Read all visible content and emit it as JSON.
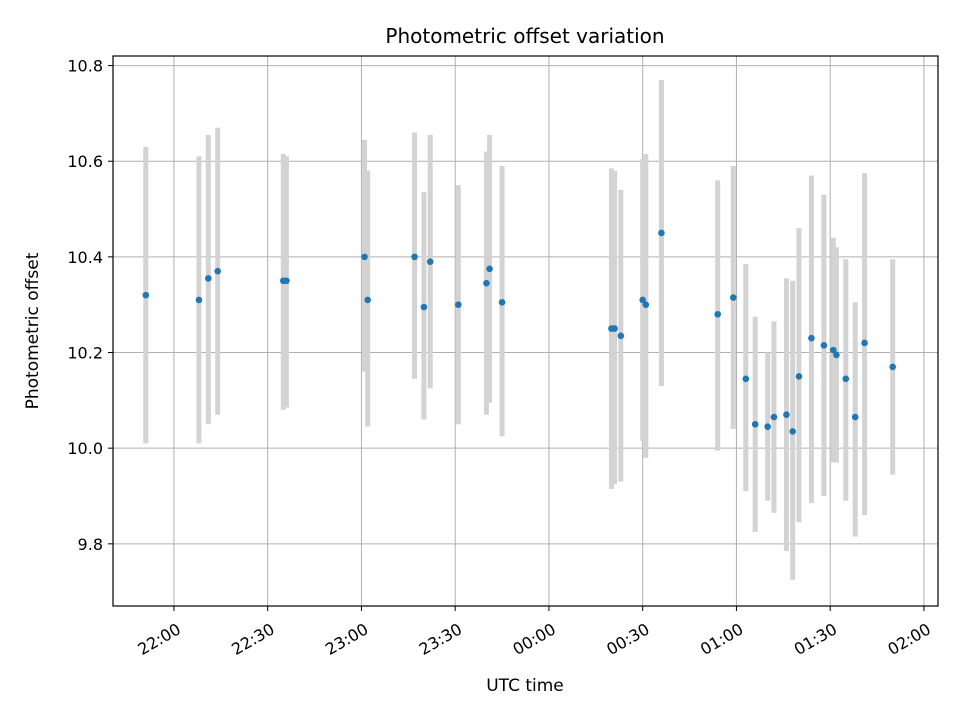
{
  "chart_data": {
    "type": "scatter",
    "title": "Photometric offset variation",
    "xlabel": "UTC time",
    "ylabel": "Photometric offset",
    "x_ticks": [
      "22:00",
      "22:30",
      "23:00",
      "23:30",
      "00:00",
      "00:30",
      "01:00",
      "01:30",
      "02:00"
    ],
    "x_tick_minutes": [
      120,
      150,
      180,
      210,
      240,
      270,
      300,
      330,
      360
    ],
    "xlim_minutes": [
      100.5,
      364.5
    ],
    "x_reference": "21:59 UTC",
    "ylim": [
      9.67,
      10.82
    ],
    "y_ticks": [
      9.8,
      10.0,
      10.2,
      10.4,
      10.6,
      10.8
    ],
    "grid": true,
    "marker_color": "#1f77b4",
    "errorbar_color": "#d3d3d3",
    "points": [
      {
        "t": "21:51",
        "y": 10.32,
        "lo": 10.01,
        "hi": 10.63
      },
      {
        "t": "22:08",
        "y": 10.31,
        "lo": 10.01,
        "hi": 10.61
      },
      {
        "t": "22:11",
        "y": 10.355,
        "lo": 10.05,
        "hi": 10.655
      },
      {
        "t": "22:14",
        "y": 10.37,
        "lo": 10.07,
        "hi": 10.67
      },
      {
        "t": "22:35",
        "y": 10.35,
        "lo": 10.08,
        "hi": 10.615
      },
      {
        "t": "22:36",
        "y": 10.35,
        "lo": 10.085,
        "hi": 10.61
      },
      {
        "t": "23:01",
        "y": 10.4,
        "lo": 10.16,
        "hi": 10.645
      },
      {
        "t": "23:02",
        "y": 10.31,
        "lo": 10.045,
        "hi": 10.58
      },
      {
        "t": "23:17",
        "y": 10.4,
        "lo": 10.145,
        "hi": 10.66
      },
      {
        "t": "23:20",
        "y": 10.295,
        "lo": 10.06,
        "hi": 10.535
      },
      {
        "t": "23:22",
        "y": 10.39,
        "lo": 10.125,
        "hi": 10.655
      },
      {
        "t": "23:31",
        "y": 10.3,
        "lo": 10.05,
        "hi": 10.55
      },
      {
        "t": "23:40",
        "y": 10.345,
        "lo": 10.07,
        "hi": 10.62
      },
      {
        "t": "23:41",
        "y": 10.375,
        "lo": 10.095,
        "hi": 10.655
      },
      {
        "t": "23:45",
        "y": 10.305,
        "lo": 10.025,
        "hi": 10.59
      },
      {
        "t": "00:20",
        "y": 10.25,
        "lo": 9.915,
        "hi": 10.585
      },
      {
        "t": "00:21",
        "y": 10.25,
        "lo": 9.925,
        "hi": 10.58
      },
      {
        "t": "00:23",
        "y": 10.235,
        "lo": 9.93,
        "hi": 10.54
      },
      {
        "t": "00:30",
        "y": 10.31,
        "lo": 10.015,
        "hi": 10.605
      },
      {
        "t": "00:31",
        "y": 10.3,
        "lo": 9.98,
        "hi": 10.615
      },
      {
        "t": "00:36",
        "y": 10.45,
        "lo": 10.13,
        "hi": 10.77
      },
      {
        "t": "00:54",
        "y": 10.28,
        "lo": 9.995,
        "hi": 10.56
      },
      {
        "t": "00:59",
        "y": 10.315,
        "lo": 10.04,
        "hi": 10.59
      },
      {
        "t": "01:03",
        "y": 10.145,
        "lo": 9.91,
        "hi": 10.385
      },
      {
        "t": "01:06",
        "y": 10.05,
        "lo": 9.825,
        "hi": 10.275
      },
      {
        "t": "01:10",
        "y": 10.045,
        "lo": 9.89,
        "hi": 10.2
      },
      {
        "t": "01:12",
        "y": 10.065,
        "lo": 9.865,
        "hi": 10.265
      },
      {
        "t": "01:16",
        "y": 10.07,
        "lo": 9.785,
        "hi": 10.355
      },
      {
        "t": "01:18",
        "y": 10.035,
        "lo": 9.725,
        "hi": 10.35
      },
      {
        "t": "01:20",
        "y": 10.15,
        "lo": 9.845,
        "hi": 10.46
      },
      {
        "t": "01:24",
        "y": 10.23,
        "lo": 9.885,
        "hi": 10.57
      },
      {
        "t": "01:28",
        "y": 10.215,
        "lo": 9.9,
        "hi": 10.53
      },
      {
        "t": "01:31",
        "y": 10.205,
        "lo": 9.97,
        "hi": 10.44
      },
      {
        "t": "01:32",
        "y": 10.195,
        "lo": 9.97,
        "hi": 10.42
      },
      {
        "t": "01:35",
        "y": 10.145,
        "lo": 9.89,
        "hi": 10.395
      },
      {
        "t": "01:38",
        "y": 10.065,
        "lo": 9.815,
        "hi": 10.305
      },
      {
        "t": "01:41",
        "y": 10.22,
        "lo": 9.86,
        "hi": 10.575
      },
      {
        "t": "01:50",
        "y": 10.17,
        "lo": 9.945,
        "hi": 10.395
      }
    ]
  }
}
